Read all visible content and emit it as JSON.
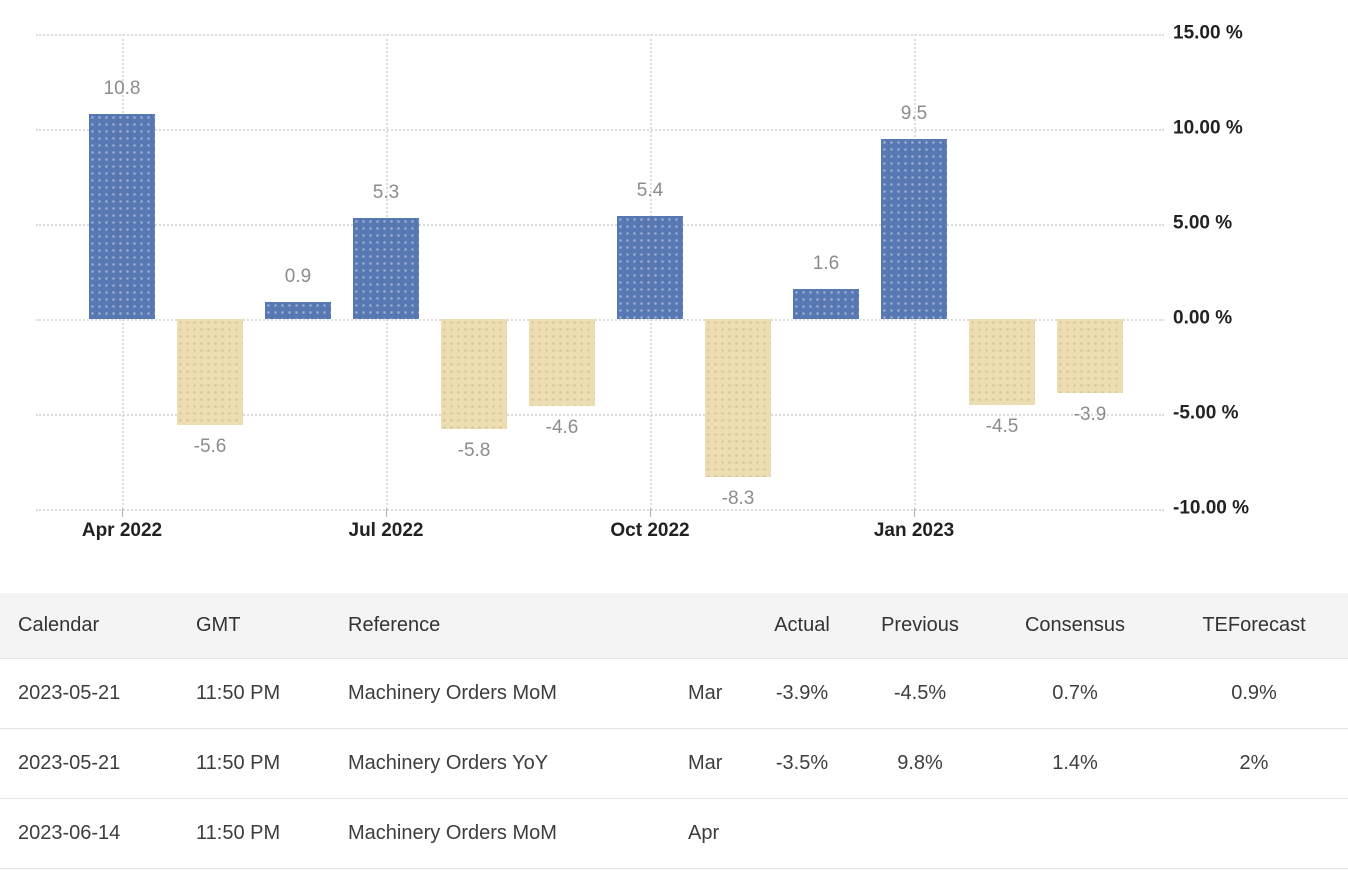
{
  "chart_data": {
    "type": "bar",
    "title": "",
    "xlabel": "",
    "ylabel": "",
    "x": [
      "Apr 2022",
      "May 2022",
      "Jun 2022",
      "Jul 2022",
      "Aug 2022",
      "Sep 2022",
      "Oct 2022",
      "Nov 2022",
      "Dec 2022",
      "Jan 2023",
      "Feb 2023",
      "Mar 2023"
    ],
    "values": [
      10.8,
      -5.6,
      0.9,
      5.3,
      -5.8,
      -4.6,
      5.4,
      -8.3,
      1.6,
      9.5,
      -4.5,
      -3.9
    ],
    "value_labels": [
      "10.8",
      "-5.6",
      "0.9",
      "5.3",
      "-5.8",
      "-4.6",
      "5.4",
      "-8.3",
      "1.6",
      "9.5",
      "-4.5",
      "-3.9"
    ],
    "x_tick_labels": [
      "Apr 2022",
      "Jul 2022",
      "Oct 2022",
      "Jan 2023"
    ],
    "y_ticks": [
      "15.00 %",
      "10.00 %",
      "5.00 %",
      "0.00 %",
      "-5.00 %",
      "-10.00 %"
    ],
    "y_tick_values": [
      15,
      10,
      5,
      0,
      -5,
      -10
    ],
    "ylim": [
      -10,
      15
    ],
    "grid": "dotted",
    "y_axis_side": "right",
    "legend": "none",
    "colors": {
      "positive_bar": "#5878b4",
      "negative_bar": "#ecddb2",
      "value_label": "#8c8c8c",
      "axis_label": "#222222",
      "gridline": "#dcdcdc"
    }
  },
  "table": {
    "headers": [
      "Calendar",
      "GMT",
      "Reference",
      "",
      "Actual",
      "Previous",
      "Consensus",
      "TEForecast"
    ],
    "rows": [
      [
        "2023-05-21",
        "11:50 PM",
        "Machinery Orders MoM",
        "Mar",
        "-3.9%",
        "-4.5%",
        "0.7%",
        "0.9%"
      ],
      [
        "2023-05-21",
        "11:50 PM",
        "Machinery Orders YoY",
        "Mar",
        "-3.5%",
        "9.8%",
        "1.4%",
        "2%"
      ],
      [
        "2023-06-14",
        "11:50 PM",
        "Machinery Orders MoM",
        "Apr",
        "",
        "",
        "",
        ""
      ]
    ],
    "header_bg": "#f4f4f4"
  }
}
